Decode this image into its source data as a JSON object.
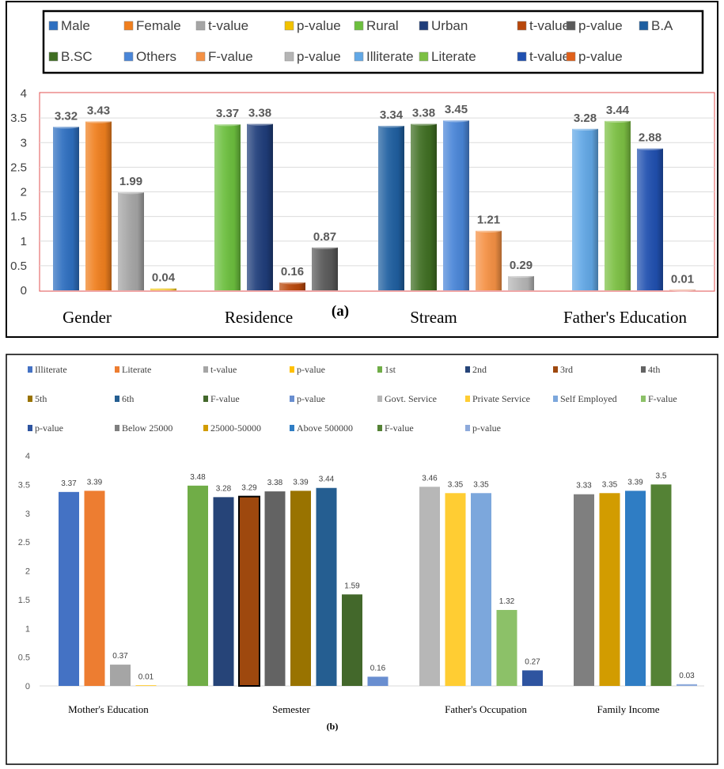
{
  "chart_data": [
    {
      "type": "bar",
      "panel_label": "(a)",
      "ylim": [
        0,
        4
      ],
      "yticks": [
        "0",
        "0.5",
        "1",
        "1.5",
        "2",
        "2.5",
        "3",
        "3.5",
        "4"
      ],
      "grid": true,
      "legend_position": "top",
      "legend": [
        {
          "label": "Male",
          "color": "#2e6fc0"
        },
        {
          "label": "Female",
          "color": "#f07f1e"
        },
        {
          "label": "t-value",
          "color": "#a5a5a5"
        },
        {
          "label": "p-value",
          "color": "#f2c200"
        },
        {
          "label": "Rural",
          "color": "#6cbf3e"
        },
        {
          "label": "Urban",
          "color": "#1f3d7a"
        },
        {
          "label": "t-value",
          "color": "#b8470b"
        },
        {
          "label": "p-value",
          "color": "#5a5a5a"
        },
        {
          "label": "B.A",
          "color": "#1f5fa0"
        },
        {
          "label": "B.SC",
          "color": "#3f6e22"
        },
        {
          "label": "Others",
          "color": "#4a86d8"
        },
        {
          "label": "F-value",
          "color": "#f59144"
        },
        {
          "label": "p-value",
          "color": "#b5b5b5"
        },
        {
          "label": "Illiterate",
          "color": "#62a8e6"
        },
        {
          "label": "Literate",
          "color": "#7cc043"
        },
        {
          "label": "t-value",
          "color": "#2050b0"
        },
        {
          "label": "p-value",
          "color": "#e0601a"
        }
      ],
      "groups": [
        {
          "category": "Gender",
          "bars": [
            {
              "value": 3.32,
              "label": "3.32",
              "color": "#2e6fc0"
            },
            {
              "value": 3.43,
              "label": "3.43",
              "color": "#f07f1e"
            },
            {
              "value": 1.99,
              "label": "1.99",
              "color": "#a5a5a5"
            },
            {
              "value": 0.04,
              "label": "0.04",
              "color": "#f2c200"
            }
          ]
        },
        {
          "category": "Residence",
          "bars": [
            {
              "value": 3.37,
              "label": "3.37",
              "color": "#6cbf3e"
            },
            {
              "value": 3.38,
              "label": "3.38",
              "color": "#1f3d7a"
            },
            {
              "value": 0.16,
              "label": "0.16",
              "color": "#b8470b"
            },
            {
              "value": 0.87,
              "label": "0.87",
              "color": "#5a5a5a"
            }
          ]
        },
        {
          "category": "Stream",
          "bars": [
            {
              "value": 3.34,
              "label": "3.34",
              "color": "#1f5fa0"
            },
            {
              "value": 3.38,
              "label": "3.38",
              "color": "#3f6e22"
            },
            {
              "value": 3.45,
              "label": "3.45",
              "color": "#4a86d8"
            },
            {
              "value": 1.21,
              "label": "1.21",
              "color": "#f59144"
            },
            {
              "value": 0.29,
              "label": "0.29",
              "color": "#b5b5b5"
            }
          ]
        },
        {
          "category": "Father's Education",
          "bars": [
            {
              "value": 3.28,
              "label": "3.28",
              "color": "#62a8e6"
            },
            {
              "value": 3.44,
              "label": "3.44",
              "color": "#7cc043"
            },
            {
              "value": 2.88,
              "label": "2.88",
              "color": "#2050b0"
            },
            {
              "value": 0.01,
              "label": "0.01",
              "color": "#e0601a"
            }
          ]
        }
      ]
    },
    {
      "type": "bar",
      "panel_label": "(b)",
      "ylim": [
        0,
        4
      ],
      "yticks": [
        "0",
        "0.5",
        "1",
        "1.5",
        "2",
        "2.5",
        "3",
        "3.5",
        "4"
      ],
      "grid": false,
      "legend_position": "top",
      "legend": [
        {
          "label": "Illiterate",
          "color": "#4472c4"
        },
        {
          "label": "Literate",
          "color": "#ed7d31"
        },
        {
          "label": "t-value",
          "color": "#a5a5a5"
        },
        {
          "label": "p-value",
          "color": "#ffc000"
        },
        {
          "label": "1st",
          "color": "#70ad47"
        },
        {
          "label": "2nd",
          "color": "#264478"
        },
        {
          "label": "3rd",
          "color": "#9e480e"
        },
        {
          "label": "4th",
          "color": "#636363"
        },
        {
          "label": "5th",
          "color": "#997300"
        },
        {
          "label": "6th",
          "color": "#255e91"
        },
        {
          "label": "F-value",
          "color": "#43682b"
        },
        {
          "label": "p-value",
          "color": "#698ed0"
        },
        {
          "label": "Govt. Service",
          "color": "#b7b7b7"
        },
        {
          "label": "Private Service",
          "color": "#ffcd33"
        },
        {
          "label": "Self Employed",
          "color": "#7ca7dc"
        },
        {
          "label": "F-value",
          "color": "#8cc168"
        },
        {
          "label": "p-value",
          "color": "#2e54a0"
        },
        {
          "label": "Below 25000",
          "color": "#7f7f7f"
        },
        {
          "label": "25000-50000",
          "color": "#d29c00"
        },
        {
          "label": "Above 500000",
          "color": "#2f7dc4"
        },
        {
          "label": "F-value",
          "color": "#548235"
        },
        {
          "label": "p-value",
          "color": "#8eaadb"
        }
      ],
      "groups": [
        {
          "category": "Mother's Education",
          "bars": [
            {
              "value": 3.37,
              "label": "3.37",
              "color": "#4472c4"
            },
            {
              "value": 3.39,
              "label": "3.39",
              "color": "#ed7d31"
            },
            {
              "value": 0.37,
              "label": "0.37",
              "color": "#a5a5a5"
            },
            {
              "value": 0.01,
              "label": "0.01",
              "color": "#ffc000"
            }
          ]
        },
        {
          "category": "Semester",
          "bars": [
            {
              "value": 3.48,
              "label": "3.48",
              "color": "#70ad47"
            },
            {
              "value": 3.28,
              "label": "3.28",
              "color": "#264478"
            },
            {
              "value": 3.29,
              "label": "3.29",
              "color": "#9e480e",
              "outline": true
            },
            {
              "value": 3.38,
              "label": "3.38",
              "color": "#636363"
            },
            {
              "value": 3.39,
              "label": "3.39",
              "color": "#997300"
            },
            {
              "value": 3.44,
              "label": "3.44",
              "color": "#255e91"
            },
            {
              "value": 1.59,
              "label": "1.59",
              "color": "#43682b"
            },
            {
              "value": 0.16,
              "label": "0.16",
              "color": "#698ed0"
            }
          ]
        },
        {
          "category": "Father's Occupation",
          "bars": [
            {
              "value": 3.46,
              "label": "3.46",
              "color": "#b7b7b7"
            },
            {
              "value": 3.35,
              "label": "3.35",
              "color": "#ffcd33"
            },
            {
              "value": 3.35,
              "label": "3.35",
              "color": "#7ca7dc"
            },
            {
              "value": 1.32,
              "label": "1.32",
              "color": "#8cc168"
            },
            {
              "value": 0.27,
              "label": "0.27",
              "color": "#2e54a0"
            }
          ]
        },
        {
          "category": "Family Income",
          "bars": [
            {
              "value": 3.33,
              "label": "3.33",
              "color": "#7f7f7f"
            },
            {
              "value": 3.35,
              "label": "3.35",
              "color": "#d29c00"
            },
            {
              "value": 3.39,
              "label": "3.39",
              "color": "#2f7dc4"
            },
            {
              "value": 3.5,
              "label": "3.5",
              "color": "#548235"
            },
            {
              "value": 0.03,
              "label": "0.03",
              "color": "#8eaadb"
            }
          ]
        }
      ]
    }
  ]
}
